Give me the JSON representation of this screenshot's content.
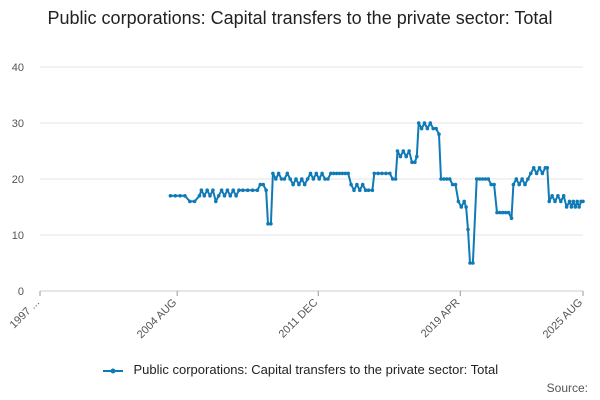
{
  "chart_data": {
    "type": "line",
    "title": "Public corporations: Capital transfers to the private sector: Total",
    "xlabel": "",
    "ylabel": "",
    "ylim": [
      0,
      40
    ],
    "yticks": [
      0,
      10,
      20,
      30,
      40
    ],
    "xlim": [
      1997.5,
      2025.6
    ],
    "xticks": [
      {
        "x": 1997.5,
        "label": "1997 ..."
      },
      {
        "x": 2004.6,
        "label": "2004 AUG"
      },
      {
        "x": 2011.9,
        "label": "2011 DEC"
      },
      {
        "x": 2019.25,
        "label": "2019 APR"
      },
      {
        "x": 2025.6,
        "label": "2025 AUG"
      }
    ],
    "grid": "horizontal",
    "legend_position": "bottom",
    "color": "#0f7ab6",
    "series": [
      {
        "name": "Public corporations: Capital transfers to the private sector: Total",
        "points": [
          [
            2004.25,
            17
          ],
          [
            2004.5,
            17
          ],
          [
            2004.75,
            17
          ],
          [
            2005.0,
            17
          ],
          [
            2005.25,
            16
          ],
          [
            2005.5,
            16
          ],
          [
            2005.75,
            17
          ],
          [
            2005.85,
            18
          ],
          [
            2006.0,
            17
          ],
          [
            2006.15,
            18
          ],
          [
            2006.3,
            17
          ],
          [
            2006.45,
            18
          ],
          [
            2006.6,
            16
          ],
          [
            2006.75,
            17
          ],
          [
            2006.9,
            18
          ],
          [
            2007.05,
            17
          ],
          [
            2007.2,
            18
          ],
          [
            2007.35,
            17
          ],
          [
            2007.5,
            18
          ],
          [
            2007.65,
            17
          ],
          [
            2007.8,
            18
          ],
          [
            2008.0,
            18
          ],
          [
            2008.25,
            18
          ],
          [
            2008.5,
            18
          ],
          [
            2008.75,
            18
          ],
          [
            2008.9,
            19
          ],
          [
            2009.05,
            19
          ],
          [
            2009.2,
            18
          ],
          [
            2009.3,
            12
          ],
          [
            2009.45,
            12
          ],
          [
            2009.55,
            21
          ],
          [
            2009.7,
            20
          ],
          [
            2009.85,
            21
          ],
          [
            2010.0,
            20
          ],
          [
            2010.15,
            20
          ],
          [
            2010.3,
            21
          ],
          [
            2010.45,
            20
          ],
          [
            2010.6,
            19
          ],
          [
            2010.75,
            20
          ],
          [
            2010.9,
            19
          ],
          [
            2011.05,
            20
          ],
          [
            2011.2,
            19
          ],
          [
            2011.35,
            20
          ],
          [
            2011.5,
            21
          ],
          [
            2011.65,
            20
          ],
          [
            2011.8,
            21
          ],
          [
            2011.95,
            20
          ],
          [
            2012.1,
            21
          ],
          [
            2012.25,
            20
          ],
          [
            2012.4,
            20
          ],
          [
            2012.55,
            21
          ],
          [
            2012.7,
            21
          ],
          [
            2012.85,
            21
          ],
          [
            2013.0,
            21
          ],
          [
            2013.15,
            21
          ],
          [
            2013.3,
            21
          ],
          [
            2013.45,
            21
          ],
          [
            2013.6,
            19
          ],
          [
            2013.75,
            18
          ],
          [
            2013.9,
            19
          ],
          [
            2014.05,
            18
          ],
          [
            2014.2,
            19
          ],
          [
            2014.35,
            18
          ],
          [
            2014.5,
            18
          ],
          [
            2014.7,
            18
          ],
          [
            2014.8,
            21
          ],
          [
            2015.0,
            21
          ],
          [
            2015.2,
            21
          ],
          [
            2015.4,
            21
          ],
          [
            2015.6,
            21
          ],
          [
            2015.75,
            20
          ],
          [
            2015.9,
            20
          ],
          [
            2016.0,
            25
          ],
          [
            2016.15,
            24
          ],
          [
            2016.3,
            25
          ],
          [
            2016.45,
            24
          ],
          [
            2016.6,
            25
          ],
          [
            2016.75,
            23
          ],
          [
            2016.9,
            23
          ],
          [
            2017.0,
            24
          ],
          [
            2017.1,
            30
          ],
          [
            2017.25,
            29
          ],
          [
            2017.4,
            30
          ],
          [
            2017.55,
            29
          ],
          [
            2017.7,
            30
          ],
          [
            2017.85,
            29
          ],
          [
            2018.0,
            29
          ],
          [
            2018.15,
            28
          ],
          [
            2018.25,
            20
          ],
          [
            2018.4,
            20
          ],
          [
            2018.55,
            20
          ],
          [
            2018.7,
            20
          ],
          [
            2018.85,
            19
          ],
          [
            2019.0,
            19
          ],
          [
            2019.15,
            16
          ],
          [
            2019.3,
            15
          ],
          [
            2019.45,
            16
          ],
          [
            2019.55,
            15
          ],
          [
            2019.65,
            11
          ],
          [
            2019.75,
            5
          ],
          [
            2019.9,
            5
          ],
          [
            2020.1,
            20
          ],
          [
            2020.25,
            20
          ],
          [
            2020.4,
            20
          ],
          [
            2020.55,
            20
          ],
          [
            2020.7,
            20
          ],
          [
            2020.85,
            19
          ],
          [
            2021.0,
            19
          ],
          [
            2021.15,
            14
          ],
          [
            2021.3,
            14
          ],
          [
            2021.45,
            14
          ],
          [
            2021.6,
            14
          ],
          [
            2021.75,
            14
          ],
          [
            2021.9,
            13
          ],
          [
            2022.0,
            19
          ],
          [
            2022.15,
            20
          ],
          [
            2022.3,
            19
          ],
          [
            2022.45,
            20
          ],
          [
            2022.6,
            19
          ],
          [
            2022.75,
            20
          ],
          [
            2022.9,
            21
          ],
          [
            2023.05,
            22
          ],
          [
            2023.2,
            21
          ],
          [
            2023.35,
            22
          ],
          [
            2023.5,
            21
          ],
          [
            2023.65,
            22
          ],
          [
            2023.75,
            22
          ],
          [
            2023.85,
            16
          ],
          [
            2024.0,
            17
          ],
          [
            2024.15,
            16
          ],
          [
            2024.3,
            17
          ],
          [
            2024.45,
            16
          ],
          [
            2024.6,
            17
          ],
          [
            2024.75,
            15
          ],
          [
            2024.9,
            16
          ],
          [
            2025.0,
            15
          ],
          [
            2025.1,
            16
          ],
          [
            2025.2,
            15
          ],
          [
            2025.3,
            16
          ],
          [
            2025.4,
            15
          ],
          [
            2025.5,
            16
          ],
          [
            2025.6,
            16
          ]
        ]
      }
    ]
  },
  "legend": {
    "label": "Public corporations: Capital transfers to the private sector: Total"
  },
  "source": {
    "label": "Source:"
  }
}
